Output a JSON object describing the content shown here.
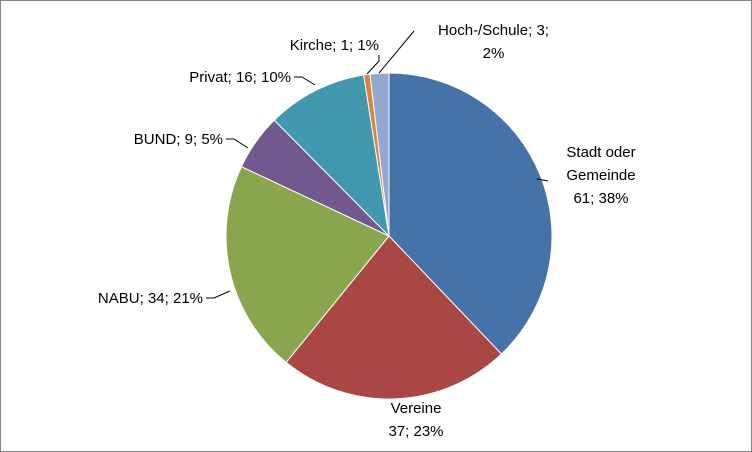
{
  "chart_data": {
    "type": "pie",
    "categories": [
      "Stadt oder Gemeinde",
      "Vereine",
      "NABU",
      "BUND",
      "Privat",
      "Kirche",
      "Hoch-/Schule"
    ],
    "values": [
      61,
      37,
      34,
      9,
      16,
      1,
      3
    ],
    "value_labels": [
      "61; 38%",
      "37; 23%",
      "34; 21%",
      "9; 5%",
      "16; 10%",
      "1; 1%",
      "3; 2%"
    ],
    "label_separator": "; ",
    "colors": [
      "#4572a7",
      "#aa4643",
      "#89a54e",
      "#71588f",
      "#4198af",
      "#db843d",
      "#93a9cf"
    ]
  }
}
